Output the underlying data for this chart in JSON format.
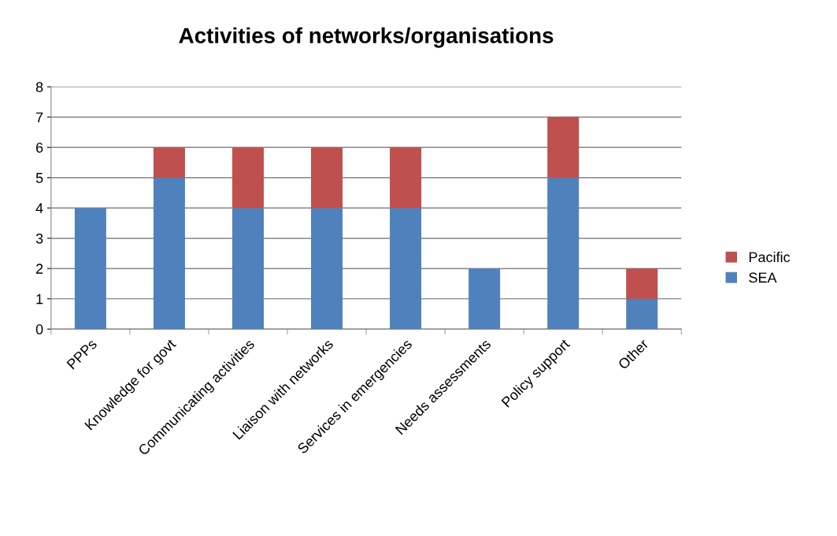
{
  "chart_data": {
    "type": "bar",
    "title": "Activities of networks/organisations",
    "categories": [
      "PPPs",
      "Knowledge for govt",
      "Communicating activities",
      "Liaison with networks",
      "Services in emergencies",
      "Needs assessments",
      "Policy support",
      "Other"
    ],
    "series": [
      {
        "name": "SEA",
        "color": "#4f81bd",
        "values": [
          4,
          5,
          4,
          4,
          4,
          2,
          5,
          1
        ]
      },
      {
        "name": "Pacific",
        "color": "#c0504d",
        "values": [
          0,
          1,
          2,
          2,
          2,
          0,
          2,
          1
        ]
      }
    ],
    "stacked": true,
    "ylim": [
      0,
      8
    ],
    "yticks": [
      0,
      1,
      2,
      3,
      4,
      5,
      6,
      7,
      8
    ],
    "grid": "y",
    "legend": "right"
  }
}
